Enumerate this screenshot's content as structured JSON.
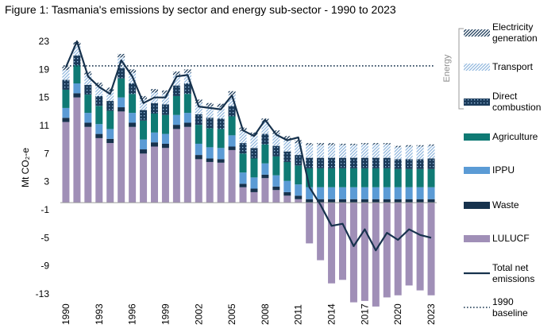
{
  "title": "Figure 1: Tasmania's emissions by sector and energy sub-sector - 1990 to 2023",
  "chart_data": {
    "type": "bar",
    "x": [
      1990,
      1991,
      1992,
      1993,
      1994,
      1995,
      1996,
      1997,
      1998,
      1999,
      2000,
      2001,
      2002,
      2003,
      2004,
      2005,
      2006,
      2007,
      2008,
      2009,
      2010,
      2011,
      2012,
      2013,
      2014,
      2015,
      2016,
      2017,
      2018,
      2019,
      2020,
      2021,
      2022,
      2023
    ],
    "x_tick_labels": [
      "1990",
      "1993",
      "1996",
      "1999",
      "2002",
      "2005",
      "2008",
      "2011",
      "2014",
      "2017",
      "2020",
      "2023"
    ],
    "ylabel": "Mt  CO₂-e",
    "ylim": [
      -13,
      23
    ],
    "y_ticks": [
      "23",
      "19",
      "15",
      "11",
      "7",
      "3",
      "-1",
      "-5",
      "-9",
      "-13"
    ],
    "legend_group_label": "Energy",
    "series": [
      {
        "name": "LULUCF",
        "color": "#a08fb7",
        "values": [
          11.5,
          15.0,
          10.8,
          9.2,
          8.5,
          13.0,
          10.8,
          7.0,
          8.0,
          7.8,
          10.5,
          10.8,
          6.2,
          5.8,
          5.7,
          7.5,
          2.2,
          1.5,
          3.5,
          1.8,
          1.0,
          0.5,
          -5.8,
          -8.2,
          -11.5,
          -11.0,
          -14.2,
          -14.0,
          -14.8,
          -13.5,
          -13.2,
          -11.8,
          -12.5,
          -13.2
        ]
      },
      {
        "name": "Waste",
        "color": "#17324d",
        "values": [
          0.6,
          0.6,
          0.6,
          0.6,
          0.6,
          0.6,
          0.6,
          0.6,
          0.6,
          0.6,
          0.6,
          0.6,
          0.6,
          0.5,
          0.5,
          0.5,
          0.5,
          0.5,
          0.5,
          0.5,
          0.5,
          0.5,
          0.5,
          0.5,
          0.5,
          0.5,
          0.5,
          0.5,
          0.5,
          0.5,
          0.5,
          0.5,
          0.5,
          0.5
        ]
      },
      {
        "name": "IPPU",
        "color": "#5b9bd5",
        "values": [
          1.4,
          1.4,
          1.4,
          1.4,
          1.4,
          1.4,
          1.4,
          1.4,
          1.4,
          1.4,
          1.4,
          1.4,
          1.6,
          1.6,
          1.6,
          1.6,
          1.6,
          1.6,
          1.6,
          1.6,
          1.6,
          1.6,
          1.7,
          1.7,
          1.7,
          1.7,
          1.7,
          1.7,
          1.7,
          1.7,
          1.7,
          1.7,
          1.7,
          1.7
        ]
      },
      {
        "name": "Agriculture",
        "color": "#0f7a74",
        "values": [
          2.6,
          2.6,
          2.6,
          2.6,
          2.6,
          2.7,
          2.7,
          2.7,
          2.7,
          2.7,
          2.7,
          2.7,
          2.7,
          2.7,
          2.7,
          2.7,
          2.7,
          2.7,
          2.7,
          2.7,
          2.7,
          2.7,
          2.7,
          2.7,
          2.7,
          2.7,
          2.7,
          2.7,
          2.7,
          2.7,
          2.6,
          2.6,
          2.6,
          2.6
        ]
      },
      {
        "name": "Direct combustion",
        "color": "#1b3b5a",
        "values": [
          1.4,
          1.4,
          1.4,
          1.4,
          1.4,
          1.5,
          1.5,
          1.5,
          1.5,
          1.5,
          1.5,
          1.5,
          1.5,
          1.5,
          1.5,
          1.5,
          1.5,
          1.5,
          1.5,
          1.5,
          1.5,
          1.5,
          1.5,
          1.5,
          1.5,
          1.5,
          1.5,
          1.5,
          1.5,
          1.5,
          1.4,
          1.4,
          1.4,
          1.5
        ]
      },
      {
        "name": "Transport",
        "color": "#9dc3e6",
        "values": [
          1.4,
          1.4,
          1.4,
          1.4,
          1.4,
          1.5,
          1.5,
          1.5,
          1.5,
          1.5,
          1.5,
          1.5,
          1.6,
          1.6,
          1.6,
          1.6,
          1.7,
          1.7,
          1.7,
          1.7,
          1.7,
          1.7,
          1.8,
          1.8,
          1.8,
          1.8,
          1.8,
          1.9,
          1.9,
          1.9,
          1.7,
          1.8,
          1.8,
          1.8
        ]
      },
      {
        "name": "Electricity generation",
        "color": "#1b3b5a",
        "values": [
          0.5,
          0.5,
          0.5,
          0.5,
          0.5,
          0.5,
          0.5,
          0.5,
          0.5,
          0.5,
          0.5,
          0.5,
          0.5,
          0.5,
          0.5,
          0.5,
          0.5,
          0.5,
          0.5,
          0.5,
          0.5,
          0.4,
          0.3,
          0.3,
          0.3,
          0.2,
          0.2,
          0.2,
          0.2,
          0.2,
          0.2,
          0.2,
          0.2,
          0.2
        ]
      }
    ],
    "line": {
      "name": "Total net emissions",
      "color": "#17324d",
      "values": [
        19.3,
        23.0,
        18.0,
        16.5,
        15.5,
        20.3,
        18.0,
        14.2,
        15.0,
        15.0,
        18.0,
        18.2,
        13.7,
        13.5,
        13.3,
        15.3,
        10.3,
        9.5,
        11.8,
        9.7,
        8.9,
        9.3,
        2.2,
        -0.3,
        -3.3,
        -3.0,
        -6.2,
        -3.8,
        -6.8,
        -4.3,
        -5.3,
        -3.8,
        -4.6,
        -5.0
      ]
    },
    "baseline": {
      "name": "1990 baseline",
      "value": 19.5
    },
    "legend": [
      {
        "key": "elec",
        "label": [
          "Electricity",
          "generation"
        ]
      },
      {
        "key": "transport",
        "label": [
          "Transport"
        ]
      },
      {
        "key": "direct",
        "label": [
          "Direct",
          "combustion"
        ]
      },
      {
        "key": "agri",
        "label": [
          "Agriculture"
        ]
      },
      {
        "key": "ippu",
        "label": [
          "IPPU"
        ]
      },
      {
        "key": "waste",
        "label": [
          "Waste"
        ]
      },
      {
        "key": "lulucf",
        "label": [
          "LULUCF"
        ]
      },
      {
        "key": "line",
        "label": [
          "Total net",
          "emissions"
        ]
      },
      {
        "key": "base",
        "label": [
          "1990",
          "baseline"
        ]
      }
    ]
  }
}
